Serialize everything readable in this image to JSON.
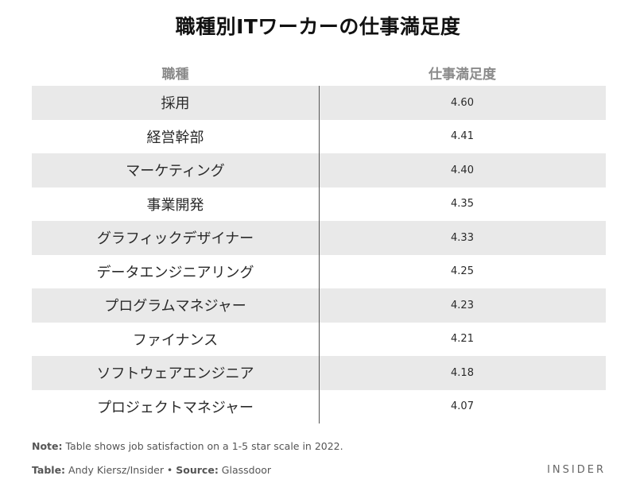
{
  "chart_data": {
    "type": "table",
    "title": "職種別ITワーカーの仕事満足度",
    "columns": [
      "職種",
      "仕事満足度"
    ],
    "rows": [
      {
        "role": "採用",
        "score": "4.60"
      },
      {
        "role": "経営幹部",
        "score": "4.41"
      },
      {
        "role": "マーケティング",
        "score": "4.40"
      },
      {
        "role": "事業開発",
        "score": "4.35"
      },
      {
        "role": "グラフィックデザイナー",
        "score": "4.33"
      },
      {
        "role": "データエンジニアリング",
        "score": "4.25"
      },
      {
        "role": "プログラムマネジャー",
        "score": "4.23"
      },
      {
        "role": "ファイナンス",
        "score": "4.21"
      },
      {
        "role": "ソフトウェアエンジニア",
        "score": "4.18"
      },
      {
        "role": "プロジェクトマネジャー",
        "score": "4.07"
      }
    ]
  },
  "footer": {
    "note_label": "Note:",
    "note_text": " Table shows job satisfaction on a 1-5 star scale in 2022.",
    "table_label": "Table:",
    "table_text": " Andy Kiersz/Insider • ",
    "source_label": "Source:",
    "source_text": " Glassdoor",
    "brand": "INSIDER"
  }
}
